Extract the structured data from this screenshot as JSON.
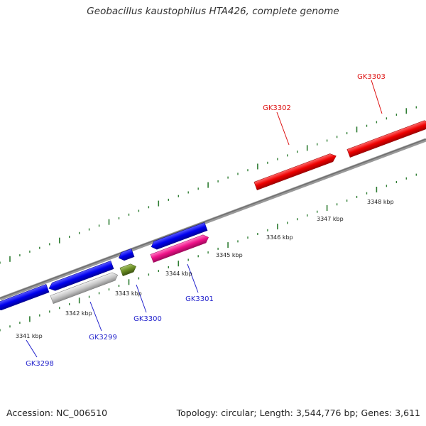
{
  "title": "Geobacillus kaustophilus HTA426, complete genome",
  "footer": {
    "accession": "Accession: NC_006510",
    "topology": "Topology: circular; Length: 3,544,776 bp; Genes: 3,611"
  },
  "scale_labels": [
    "3341 kbp",
    "3342 kbp",
    "3343 kbp",
    "3344 kbp",
    "3345 kbp",
    "3346 kbp",
    "3347 kbp",
    "3348 kbp"
  ],
  "genes": [
    {
      "id": "GK3298",
      "label": "GK3298",
      "strand": "-",
      "color": "#0000ee",
      "label_color": "#2222cc"
    },
    {
      "id": "GK3299",
      "label": "GK3299",
      "strand": "-",
      "color": "#0000ee",
      "label_color": "#2222cc"
    },
    {
      "id": "GK3299b",
      "label": "",
      "strand": "+",
      "color": "#c8c8c8",
      "label_color": ""
    },
    {
      "id": "GK3300a",
      "label": "",
      "strand": "-",
      "color": "#0000ee",
      "label_color": ""
    },
    {
      "id": "GK3300",
      "label": "GK3300",
      "strand": "+",
      "color": "#6b8e23",
      "label_color": "#2222cc"
    },
    {
      "id": "GK3301a",
      "label": "",
      "strand": "-",
      "color": "#0000ee",
      "label_color": ""
    },
    {
      "id": "GK3301",
      "label": "GK3301",
      "strand": "+",
      "color": "#ee1188",
      "label_color": "#2222cc"
    },
    {
      "id": "GK3302",
      "label": "GK3302",
      "strand": "+",
      "color": "#ee0000",
      "label_color": "#dd1111"
    },
    {
      "id": "GK3303",
      "label": "GK3303",
      "strand": "+",
      "color": "#ee0000",
      "label_color": "#dd1111"
    }
  ],
  "colors": {
    "backbone": "#808080",
    "tick": "#2e7d32",
    "blue_gene": "#0000ee",
    "red_gene": "#ee0000"
  }
}
